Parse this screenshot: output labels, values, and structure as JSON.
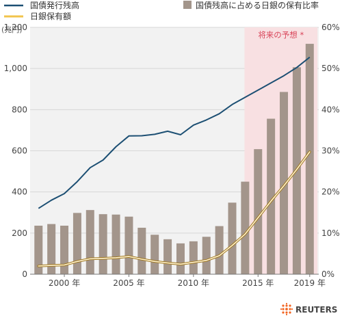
{
  "chart_data": {
    "type": "bar+line",
    "legend": {
      "line1": "国債発行残高",
      "line2": "日銀保有額",
      "bars": "国債残高に占める日銀の保有比率"
    },
    "left_axis": {
      "unit": "(兆円)",
      "ticks": [
        0,
        200,
        400,
        600,
        800,
        1000,
        1200
      ],
      "tick_labels": [
        "0",
        "200",
        "400",
        "600",
        "800",
        "1,000",
        "1,200"
      ],
      "lim": [
        0,
        1200
      ]
    },
    "right_axis": {
      "ticks": [
        0,
        10,
        20,
        30,
        40,
        50,
        60
      ],
      "tick_labels": [
        "0%",
        "10%",
        "20%",
        "30%",
        "40%",
        "50%",
        "60%"
      ],
      "lim": [
        0,
        60
      ]
    },
    "x_ticks": [
      {
        "year": 2000,
        "label": "2000 年"
      },
      {
        "year": 2005,
        "label": "2005 年"
      },
      {
        "year": 2010,
        "label": "2010 年"
      },
      {
        "year": 2015,
        "label": "2015 年"
      },
      {
        "year": 2019,
        "label": "2019 年"
      }
    ],
    "forecast": {
      "label": "将来の予想 *",
      "from": 2013.95,
      "to": 2019.6
    },
    "bars_years": [
      1998,
      1999,
      2000,
      2001,
      2002,
      2003,
      2004,
      2005,
      2006,
      2007,
      2008,
      2009,
      2010,
      2011,
      2012,
      2013,
      2014,
      2015,
      2016,
      2017,
      2018,
      2019
    ],
    "bars_pct": [
      11.8,
      12.2,
      11.8,
      14.9,
      15.6,
      14.6,
      14.5,
      14.0,
      11.3,
      9.6,
      8.5,
      7.5,
      8.0,
      9.1,
      11.7,
      17.4,
      22.5,
      30.4,
      37.8,
      44.3,
      50.3,
      56.0
    ],
    "series": [
      {
        "name": "国債発行残高",
        "color": "#1c4f73",
        "points": [
          [
            1998,
            320
          ],
          [
            1999,
            360
          ],
          [
            2000,
            392
          ],
          [
            2001,
            450
          ],
          [
            2002,
            518
          ],
          [
            2003,
            555
          ],
          [
            2004,
            620
          ],
          [
            2005,
            672
          ],
          [
            2006,
            673
          ],
          [
            2007,
            680
          ],
          [
            2008,
            695
          ],
          [
            2009,
            678
          ],
          [
            2010,
            725
          ],
          [
            2011,
            750
          ],
          [
            2012,
            780
          ],
          [
            2013,
            825
          ],
          [
            2014,
            860
          ],
          [
            2015,
            895
          ],
          [
            2016,
            930
          ],
          [
            2017,
            965
          ],
          [
            2018,
            1005
          ],
          [
            2019,
            1055
          ]
        ]
      },
      {
        "name": "日銀保有額",
        "color": "#f2c44c",
        "points": [
          [
            1998,
            40
          ],
          [
            1999,
            43
          ],
          [
            2000,
            45
          ],
          [
            2001,
            62
          ],
          [
            2002,
            75
          ],
          [
            2003,
            77
          ],
          [
            2004,
            80
          ],
          [
            2005,
            86
          ],
          [
            2006,
            73
          ],
          [
            2007,
            62
          ],
          [
            2008,
            55
          ],
          [
            2009,
            49
          ],
          [
            2010,
            58
          ],
          [
            2011,
            67
          ],
          [
            2012,
            90
          ],
          [
            2013,
            140
          ],
          [
            2014,
            195
          ],
          [
            2015,
            275
          ],
          [
            2016,
            355
          ],
          [
            2017,
            430
          ],
          [
            2018,
            510
          ],
          [
            2019,
            595
          ]
        ]
      }
    ],
    "colors": {
      "bars": "#a3958b",
      "forecast": "#f8e0e2",
      "forecast_text": "#d9455a",
      "plot_bg": "#f2f2f2"
    }
  },
  "credit": "REUTERS"
}
